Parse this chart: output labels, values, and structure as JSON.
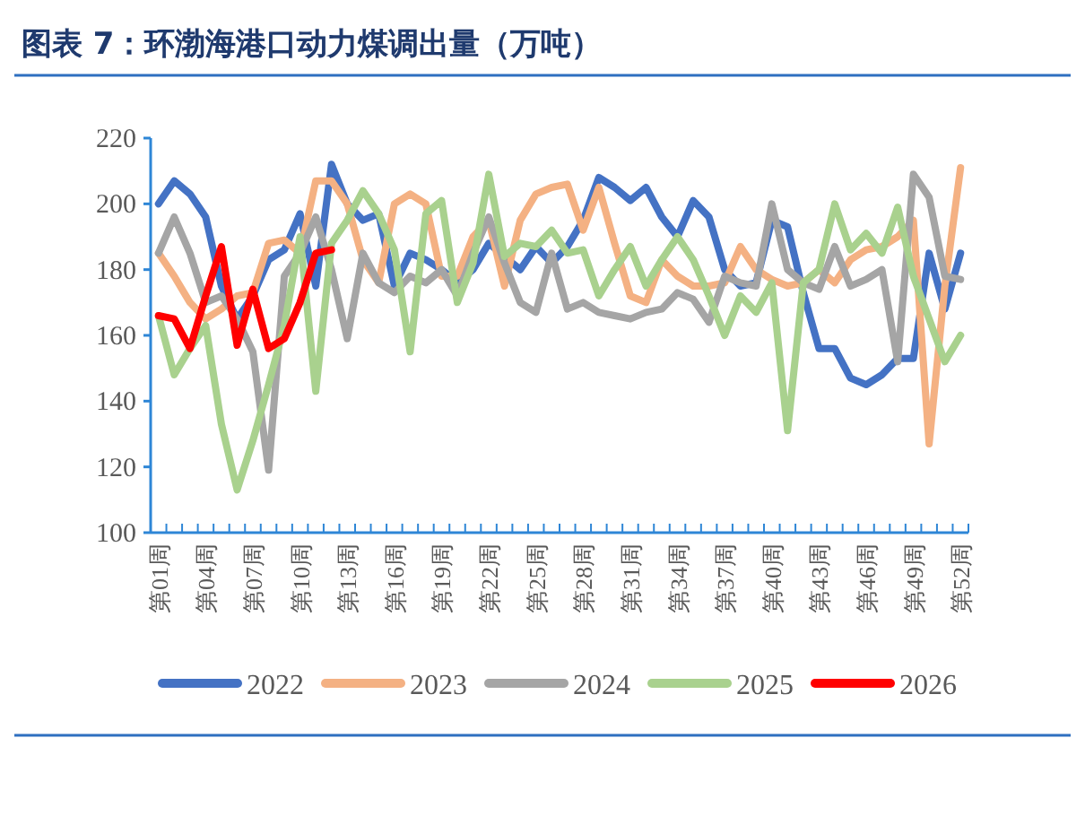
{
  "chart_data": {
    "type": "line",
    "title": "图表 7：环渤海港口动力煤调出量（万吨）",
    "categories": [
      "第01周",
      null,
      null,
      "第04周",
      null,
      null,
      "第07周",
      null,
      null,
      "第10周",
      null,
      null,
      "第13周",
      null,
      null,
      "第16周",
      null,
      null,
      "第19周",
      null,
      null,
      "第22周",
      null,
      null,
      "第25周",
      null,
      null,
      "第28周",
      null,
      null,
      "第31周",
      null,
      null,
      "第34周",
      null,
      null,
      "第37周",
      null,
      null,
      "第40周",
      null,
      null,
      "第43周",
      null,
      null,
      "第46周",
      null,
      null,
      "第49周",
      null,
      null,
      "第52周"
    ],
    "series": [
      {
        "name": "2022",
        "color": "#4472c4",
        "values": [
          200,
          207,
          203,
          196,
          175,
          165,
          172,
          183,
          186,
          197,
          175,
          212,
          200,
          195,
          197,
          175,
          185,
          183,
          180,
          176,
          180,
          188,
          184,
          180,
          187,
          182,
          187,
          195,
          208,
          205,
          201,
          205,
          196,
          190,
          201,
          196,
          180,
          175,
          176,
          195,
          193,
          173,
          156,
          156,
          147,
          145,
          148,
          153,
          153,
          185,
          168,
          185
        ]
      },
      {
        "name": "2023",
        "color": "#f4b183",
        "values": [
          185,
          178,
          170,
          165,
          168,
          172,
          173,
          188,
          189,
          185,
          207,
          207,
          200,
          183,
          176,
          200,
          203,
          200,
          178,
          178,
          190,
          195,
          175,
          195,
          203,
          205,
          206,
          192,
          205,
          188,
          172,
          170,
          183,
          178,
          175,
          175,
          176,
          187,
          180,
          177,
          175,
          176,
          180,
          176,
          183,
          186,
          187,
          190,
          195,
          127,
          175,
          211
        ]
      },
      {
        "name": "2024",
        "color": "#a5a5a5",
        "values": [
          185,
          196,
          185,
          170,
          172,
          165,
          155,
          119,
          178,
          185,
          196,
          180,
          159,
          185,
          176,
          173,
          178,
          176,
          180,
          172,
          185,
          196,
          182,
          170,
          167,
          185,
          168,
          170,
          167,
          166,
          165,
          167,
          168,
          173,
          171,
          164,
          178,
          176,
          175,
          200,
          180,
          176,
          174,
          187,
          175,
          177,
          180,
          152,
          209,
          202,
          178,
          177
        ]
      },
      {
        "name": "2025",
        "color": "#a9d18e",
        "values": [
          166,
          148,
          156,
          163,
          133,
          113,
          128,
          145,
          163,
          190,
          143,
          188,
          195,
          204,
          197,
          186,
          155,
          197,
          201,
          170,
          182,
          209,
          184,
          188,
          187,
          192,
          185,
          186,
          172,
          180,
          187,
          175,
          183,
          190,
          183,
          172,
          160,
          172,
          167,
          176,
          131,
          176,
          180,
          200,
          186,
          191,
          185,
          199,
          178,
          165,
          152,
          160
        ]
      },
      {
        "name": "2026",
        "color": "#ff0000",
        "values": [
          166,
          165,
          156,
          172,
          187,
          157,
          174,
          156,
          159,
          170,
          185,
          186,
          null,
          null,
          null,
          null,
          null,
          null,
          null,
          null,
          null,
          null,
          null,
          null,
          null,
          null,
          null,
          null,
          null,
          null,
          null,
          null,
          null,
          null,
          null,
          null,
          null,
          null,
          null,
          null,
          null,
          null,
          null,
          null,
          null,
          null,
          null,
          null,
          null,
          null,
          null,
          null
        ]
      }
    ],
    "ylim": [
      100,
      220
    ],
    "yticks": [
      100,
      120,
      140,
      160,
      180,
      200,
      220
    ],
    "legend": "bottom"
  }
}
